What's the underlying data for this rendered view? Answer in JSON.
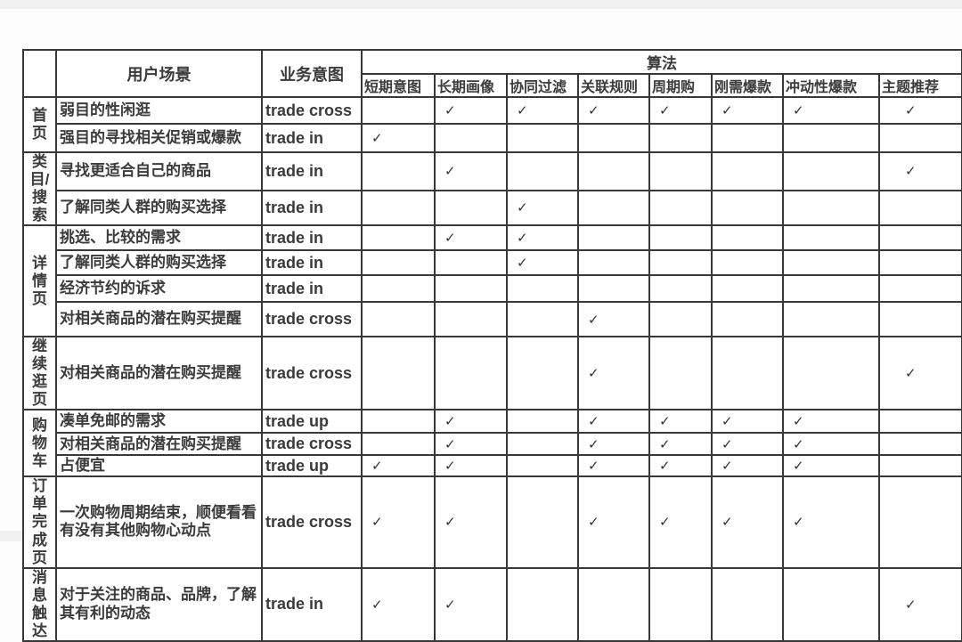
{
  "table": {
    "header": {
      "scenario": "用户场景",
      "intent": "业务意图",
      "algorithms_group": "算法",
      "algorithms": [
        "短期意图",
        "长期画像",
        "协同过滤",
        "关联规则",
        "周期购",
        "刚需爆款",
        "冲动性爆款",
        "主题推荐"
      ]
    },
    "check_glyph": "✓",
    "colors": {
      "border": "#383838",
      "text": "#3b3b3b",
      "background": "#ffffff"
    },
    "groups": [
      {
        "label": "首页",
        "rows": [
          {
            "scenario": "弱目的性闲逛",
            "intent": "trade cross",
            "checks": [
              0,
              1,
              1,
              1,
              1,
              1,
              1,
              1
            ]
          },
          {
            "scenario": "强目的寻找相关促销或爆款",
            "intent": "trade in",
            "checks": [
              1,
              0,
              0,
              0,
              0,
              0,
              0,
              0
            ]
          }
        ]
      },
      {
        "label": "类目/\n搜索",
        "rows": [
          {
            "scenario": "寻找更适合自己的商品",
            "intent": "trade in",
            "checks": [
              0,
              1,
              0,
              0,
              0,
              0,
              0,
              1
            ]
          },
          {
            "scenario": "了解同类人群的购买选择",
            "intent": "trade in",
            "checks": [
              0,
              0,
              1,
              0,
              0,
              0,
              0,
              0
            ]
          }
        ]
      },
      {
        "label": "详情\n页",
        "rows": [
          {
            "scenario": "挑选、比较的需求",
            "intent": "trade in",
            "checks": [
              0,
              1,
              1,
              0,
              0,
              0,
              0,
              0
            ]
          },
          {
            "scenario": "了解同类人群的购买选择",
            "intent": "trade in",
            "checks": [
              0,
              0,
              1,
              0,
              0,
              0,
              0,
              0
            ]
          },
          {
            "scenario": "经济节约的诉求",
            "intent": "trade in",
            "checks": [
              0,
              0,
              0,
              0,
              0,
              0,
              0,
              0
            ]
          },
          {
            "scenario": "对相关商品的潜在购买提醒",
            "intent": "trade cross",
            "checks": [
              0,
              0,
              0,
              1,
              0,
              0,
              0,
              0
            ]
          }
        ]
      },
      {
        "label": "继续\n逛页",
        "rows": [
          {
            "scenario": "对相关商品的潜在购买提醒",
            "intent": "trade cross",
            "checks": [
              0,
              0,
              0,
              1,
              0,
              0,
              0,
              1
            ]
          }
        ]
      },
      {
        "label": "购物\n车",
        "rows": [
          {
            "scenario": "凑单免邮的需求",
            "intent": "trade up",
            "checks": [
              0,
              1,
              0,
              1,
              1,
              1,
              1,
              0
            ]
          },
          {
            "scenario": "对相关商品的潜在购买提醒",
            "intent": "trade cross",
            "checks": [
              0,
              1,
              0,
              1,
              1,
              1,
              1,
              0
            ]
          },
          {
            "scenario": "占便宜",
            "intent": "trade up",
            "checks": [
              1,
              1,
              0,
              1,
              1,
              1,
              1,
              0
            ]
          }
        ]
      },
      {
        "label": "订单\n完成\n页",
        "rows": [
          {
            "scenario": "一次购物周期结束，顺便看看有没有其他购物心动点",
            "intent": "trade cross",
            "checks": [
              1,
              1,
              0,
              1,
              1,
              1,
              1,
              0
            ]
          }
        ]
      },
      {
        "label": "消息\n触达",
        "rows": [
          {
            "scenario": "对于关注的商品、品牌，了解其有利的动态",
            "intent": "trade in",
            "checks": [
              1,
              1,
              0,
              0,
              0,
              0,
              0,
              1
            ]
          }
        ]
      }
    ]
  }
}
